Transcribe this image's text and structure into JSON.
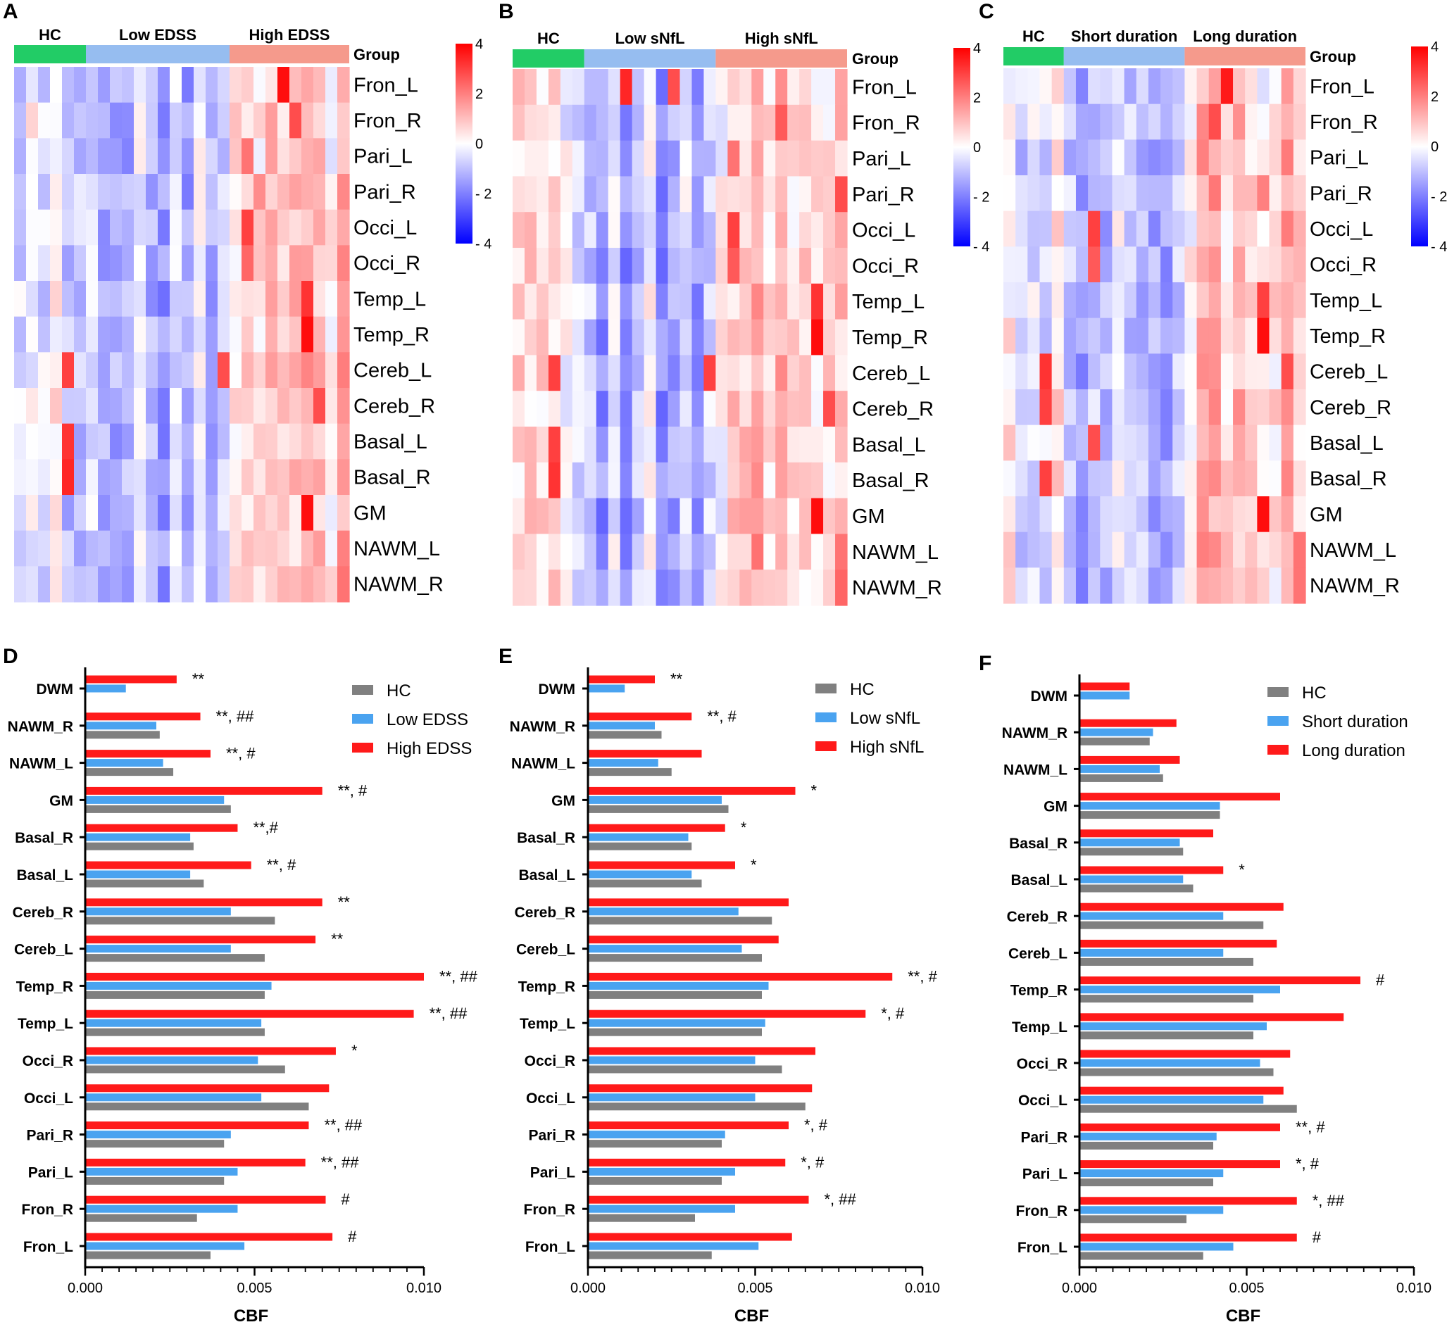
{
  "colors": {
    "hc": "#808080",
    "low": "#4aa3f0",
    "high": "#ff1a1a",
    "grp_hc": "#22cc66",
    "grp_low": "#96bdf0",
    "grp_high": "#f59a8c",
    "scale_high": "#ff0000",
    "scale_mid": "#ffffff",
    "scale_low": "#0000ff"
  },
  "heatmap_rows": [
    "Fron_L",
    "Fron_R",
    "Pari_L",
    "Pari_R",
    "Occi_L",
    "Occi_R",
    "Temp_L",
    "Temp_R",
    "Cereb_L",
    "Cereb_R",
    "Basal_L",
    "Basal_R",
    "GM",
    "NAWM_L",
    "NAWM_R"
  ],
  "group_header": "Group",
  "colorbar_ticks": [
    "4",
    "2",
    "0",
    "- 2",
    "- 4"
  ],
  "bar_categories": [
    "DWM",
    "NAWM_R",
    "NAWM_L",
    "GM",
    "Basal_R",
    "Basal_L",
    "Cereb_R",
    "Cereb_L",
    "Temp_R",
    "Temp_L",
    "Occi_R",
    "Occi_L",
    "Pari_R",
    "Pari_L",
    "Fron_R",
    "Fron_L"
  ],
  "x_ticks": [
    "0.000",
    "0.005",
    "0.010"
  ],
  "x_title": "CBF",
  "chart_data": [
    {
      "panel": "A",
      "type": "heatmap",
      "scale": [
        -4,
        4
      ],
      "groups": [
        {
          "name": "HC",
          "n": 6
        },
        {
          "name": "Low EDSS",
          "n": 12
        },
        {
          "name": "High EDSS",
          "n": 10
        }
      ],
      "rows": [
        "Fron_L",
        "Fron_R",
        "Pari_L",
        "Pari_R",
        "Occi_L",
        "Occi_R",
        "Temp_L",
        "Temp_R",
        "Cereb_L",
        "Cereb_R",
        "Basal_L",
        "Basal_R",
        "GM",
        "NAWM_L",
        "NAWM_R"
      ],
      "hot_cells": [
        [
          0,
          22,
          3.8
        ],
        [
          1,
          23,
          2.8
        ],
        [
          2,
          19,
          2.2
        ],
        [
          3,
          20,
          1.8
        ],
        [
          4,
          19,
          3.0
        ],
        [
          5,
          19,
          2.4
        ],
        [
          6,
          24,
          3.2
        ],
        [
          7,
          24,
          3.8
        ],
        [
          8,
          17,
          2.8
        ],
        [
          8,
          4,
          3.0
        ],
        [
          9,
          25,
          2.8
        ],
        [
          10,
          4,
          3.2
        ],
        [
          11,
          4,
          3.4
        ],
        [
          12,
          24,
          3.8
        ],
        [
          13,
          27,
          2.0
        ],
        [
          14,
          27,
          2.2
        ]
      ]
    },
    {
      "panel": "B",
      "type": "heatmap",
      "scale": [
        -4,
        4
      ],
      "groups": [
        {
          "name": "HC",
          "n": 6
        },
        {
          "name": "Low sNfL",
          "n": 11
        },
        {
          "name": "High sNfL",
          "n": 11
        }
      ],
      "rows": [
        "Fron_L",
        "Fron_R",
        "Pari_L",
        "Pari_R",
        "Occi_L",
        "Occi_R",
        "Temp_L",
        "Temp_R",
        "Cereb_L",
        "Cereb_R",
        "Basal_L",
        "Basal_R",
        "GM",
        "NAWM_L",
        "NAWM_R"
      ],
      "hot_cells": [
        [
          0,
          9,
          3.4
        ],
        [
          0,
          13,
          2.8
        ],
        [
          1,
          22,
          2.6
        ],
        [
          2,
          18,
          2.2
        ],
        [
          3,
          27,
          2.8
        ],
        [
          4,
          18,
          3.0
        ],
        [
          5,
          18,
          2.6
        ],
        [
          6,
          25,
          3.2
        ],
        [
          7,
          25,
          3.8
        ],
        [
          8,
          16,
          3.0
        ],
        [
          8,
          3,
          3.0
        ],
        [
          9,
          26,
          2.8
        ],
        [
          10,
          3,
          3.0
        ],
        [
          11,
          3,
          3.2
        ],
        [
          12,
          25,
          3.8
        ],
        [
          13,
          27,
          2.2
        ],
        [
          14,
          27,
          2.4
        ]
      ]
    },
    {
      "panel": "C",
      "type": "heatmap",
      "scale": [
        -4,
        4
      ],
      "groups": [
        {
          "name": "HC",
          "n": 5
        },
        {
          "name": "Short duration",
          "n": 10
        },
        {
          "name": "Long duration",
          "n": 10
        }
      ],
      "rows": [
        "Fron_L",
        "Fron_R",
        "Pari_L",
        "Pari_R",
        "Occi_L",
        "Occi_R",
        "Temp_L",
        "Temp_R",
        "Cereb_L",
        "Cereb_R",
        "Basal_L",
        "Basal_R",
        "GM",
        "NAWM_L",
        "NAWM_R"
      ],
      "hot_cells": [
        [
          0,
          18,
          3.6
        ],
        [
          1,
          17,
          2.8
        ],
        [
          2,
          16,
          2.0
        ],
        [
          3,
          21,
          2.0
        ],
        [
          4,
          7,
          3.0
        ],
        [
          5,
          7,
          2.6
        ],
        [
          6,
          21,
          3.0
        ],
        [
          7,
          21,
          3.8
        ],
        [
          8,
          3,
          3.2
        ],
        [
          8,
          23,
          2.8
        ],
        [
          9,
          3,
          3.0
        ],
        [
          10,
          7,
          2.8
        ],
        [
          11,
          3,
          3.0
        ],
        [
          12,
          21,
          3.8
        ],
        [
          13,
          24,
          2.2
        ],
        [
          14,
          24,
          2.2
        ]
      ]
    },
    {
      "panel": "D",
      "type": "bar",
      "orientation": "horizontal",
      "xlabel": "CBF",
      "xlim": [
        0,
        0.01
      ],
      "xticks": [
        0,
        0.005,
        0.01
      ],
      "categories": [
        "DWM",
        "NAWM_R",
        "NAWM_L",
        "GM",
        "Basal_R",
        "Basal_L",
        "Cereb_R",
        "Cereb_L",
        "Temp_R",
        "Temp_L",
        "Occi_R",
        "Occi_L",
        "Pari_R",
        "Pari_L",
        "Fron_R",
        "Fron_L"
      ],
      "series": [
        {
          "name": "HC",
          "values": [
            null,
            0.0022,
            0.0026,
            0.0043,
            0.0032,
            0.0035,
            0.0056,
            0.0053,
            0.0053,
            0.0053,
            0.0059,
            0.0066,
            0.0041,
            0.0041,
            0.0033,
            0.0037
          ]
        },
        {
          "name": "Low EDSS",
          "values": [
            0.0012,
            0.0021,
            0.0023,
            0.0041,
            0.0031,
            0.0031,
            0.0043,
            0.0043,
            0.0055,
            0.0052,
            0.0051,
            0.0052,
            0.0043,
            0.0045,
            0.0045,
            0.0047
          ]
        },
        {
          "name": "High EDSS",
          "values": [
            0.0027,
            0.0034,
            0.0037,
            0.007,
            0.0045,
            0.0049,
            0.007,
            0.0068,
            0.01,
            0.0097,
            0.0074,
            0.0072,
            0.0066,
            0.0065,
            0.0071,
            0.0073
          ]
        }
      ],
      "annotations": [
        "**",
        "**, ##",
        "**, #",
        "**, #",
        "**,#",
        "**, #",
        "**",
        "**",
        "**, ##",
        "**, ##",
        "*",
        "",
        "**, ##",
        "**, ##",
        "#",
        "#"
      ]
    },
    {
      "panel": "E",
      "type": "bar",
      "orientation": "horizontal",
      "xlabel": "CBF",
      "xlim": [
        0,
        0.01
      ],
      "xticks": [
        0,
        0.005,
        0.01
      ],
      "categories": [
        "DWM",
        "NAWM_R",
        "NAWM_L",
        "GM",
        "Basal_R",
        "Basal_L",
        "Cereb_R",
        "Cereb_L",
        "Temp_R",
        "Temp_L",
        "Occi_R",
        "Occi_L",
        "Pari_R",
        "Pari_L",
        "Fron_R",
        "Fron_L"
      ],
      "series": [
        {
          "name": "HC",
          "values": [
            null,
            0.0022,
            0.0025,
            0.0042,
            0.0031,
            0.0034,
            0.0055,
            0.0052,
            0.0052,
            0.0052,
            0.0058,
            0.0065,
            0.004,
            0.004,
            0.0032,
            0.0037
          ]
        },
        {
          "name": "Low sNfL",
          "values": [
            0.0011,
            0.002,
            0.0021,
            0.004,
            0.003,
            0.0031,
            0.0045,
            0.0046,
            0.0054,
            0.0053,
            0.005,
            0.005,
            0.0041,
            0.0044,
            0.0044,
            0.0051
          ]
        },
        {
          "name": "High sNfL",
          "values": [
            0.002,
            0.0031,
            0.0034,
            0.0062,
            0.0041,
            0.0044,
            0.006,
            0.0057,
            0.0091,
            0.0083,
            0.0068,
            0.0067,
            0.006,
            0.0059,
            0.0066,
            0.0061
          ]
        }
      ],
      "annotations": [
        "**",
        "**, #",
        "",
        "*",
        "*",
        "*",
        "",
        "",
        "**, #",
        "*, #",
        "",
        "",
        "*, #",
        "*, #",
        "*, ##",
        ""
      ]
    },
    {
      "panel": "F",
      "type": "bar",
      "orientation": "horizontal",
      "xlabel": "CBF",
      "xlim": [
        0,
        0.01
      ],
      "xticks": [
        0,
        0.005,
        0.01
      ],
      "categories": [
        "DWM",
        "NAWM_R",
        "NAWM_L",
        "GM",
        "Basal_R",
        "Basal_L",
        "Cereb_R",
        "Cereb_L",
        "Temp_R",
        "Temp_L",
        "Occi_R",
        "Occi_L",
        "Pari_R",
        "Pari_L",
        "Fron_R",
        "Fron_L"
      ],
      "series": [
        {
          "name": "HC",
          "values": [
            null,
            0.0021,
            0.0025,
            0.0042,
            0.0031,
            0.0034,
            0.0055,
            0.0052,
            0.0052,
            0.0052,
            0.0058,
            0.0065,
            0.004,
            0.004,
            0.0032,
            0.0037
          ]
        },
        {
          "name": "Short duration",
          "values": [
            0.0015,
            0.0022,
            0.0024,
            0.0042,
            0.003,
            0.0031,
            0.0043,
            0.0043,
            0.006,
            0.0056,
            0.0054,
            0.0055,
            0.0041,
            0.0043,
            0.0043,
            0.0046
          ]
        },
        {
          "name": "Long duration",
          "values": [
            0.0015,
            0.0029,
            0.003,
            0.006,
            0.004,
            0.0043,
            0.0061,
            0.0059,
            0.0084,
            0.0079,
            0.0063,
            0.0061,
            0.006,
            0.006,
            0.0065,
            0.0065
          ]
        }
      ],
      "annotations": [
        "",
        "",
        "",
        "",
        "",
        "*",
        "",
        "",
        "#",
        "",
        "",
        "",
        "**, #",
        "*, #",
        "*, ##",
        "#"
      ]
    }
  ]
}
